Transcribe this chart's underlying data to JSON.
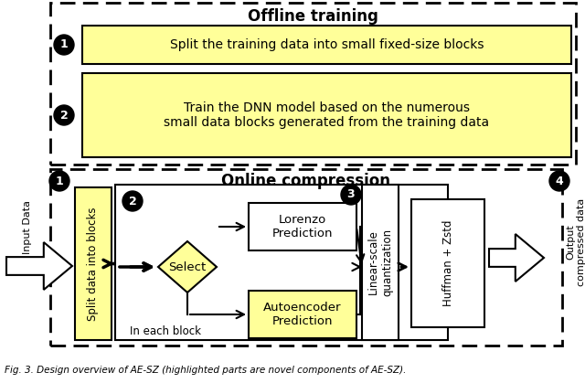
{
  "title_offline": "Offline training",
  "title_online": "Online compression",
  "step1_offline": "Split the training data into small fixed-size blocks",
  "step2_offline": "Train the DNN model based on the numerous\nsmall data blocks generated from the training data",
  "split_blocks_label": "Split data into blocks",
  "select_label": "Select",
  "lorenzo_label": "Lorenzo\nPrediction",
  "autoencoder_label": "Autoencoder\nPrediction",
  "linear_scale_label": "Linear-scale\nquantization",
  "huffman_label": "Huffman + Zstd",
  "in_each_block": "In each block",
  "input_data": "Input Data",
  "output_data": "Output\ncompressed data",
  "caption": "Fig. 3. Design overview of AE-SZ (highlighted parts are novel components of AE-SZ).",
  "yellow_fill": "#FFFF99",
  "white_fill": "#FFFFFF",
  "black_fill": "#000000",
  "bg_color": "#FFFFFF"
}
